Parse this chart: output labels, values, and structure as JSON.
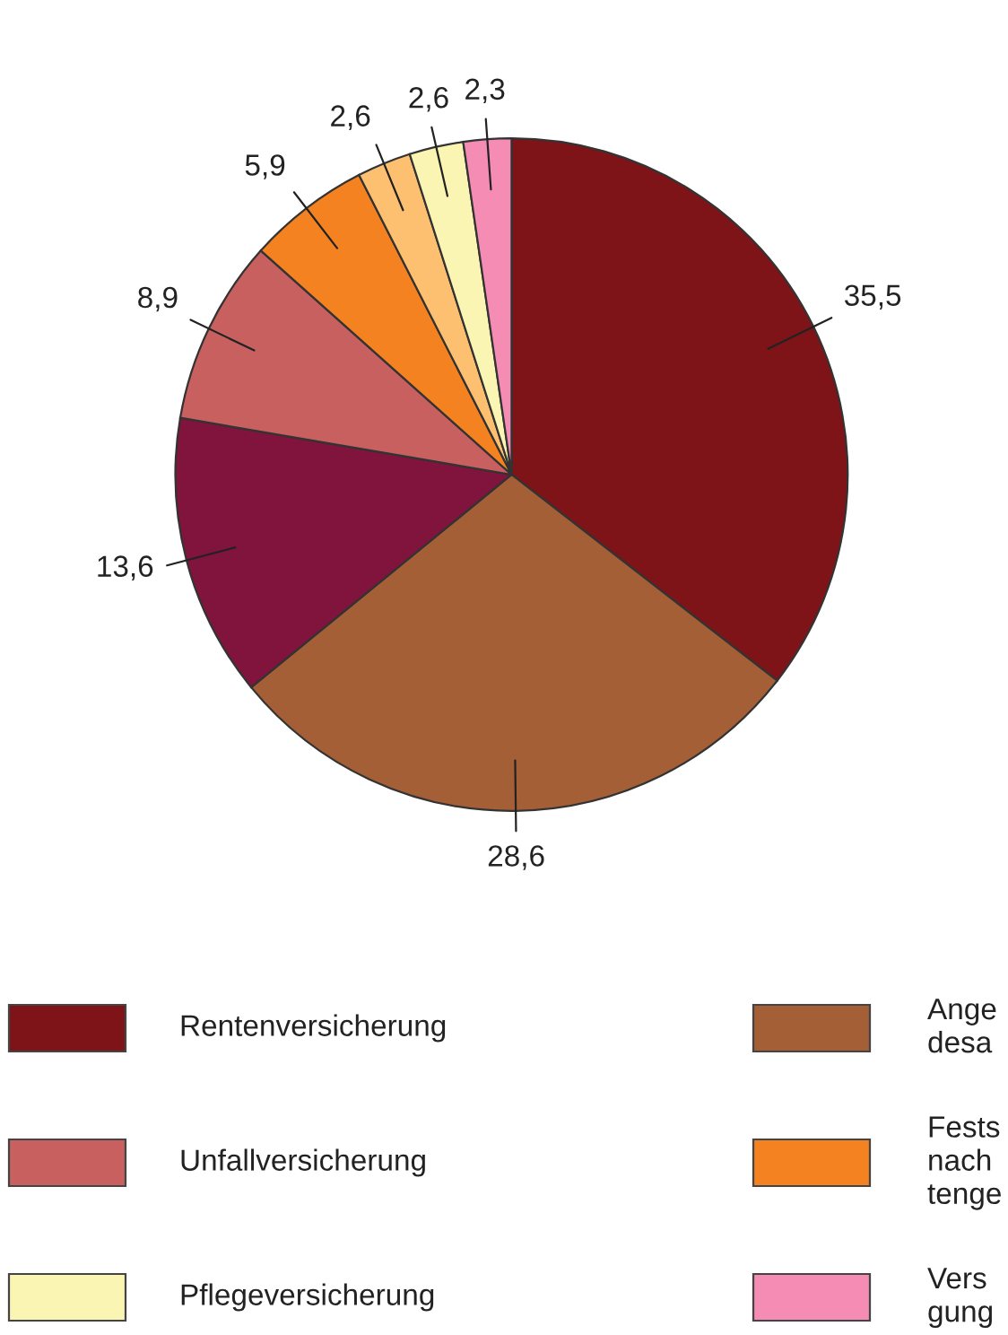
{
  "chart_data": {
    "type": "pie",
    "categories": [
      "Rentenversicherung",
      "Ange\ndesa",
      null,
      "Unfallversicherung",
      "Fests\nnach\ntenge",
      null,
      "Pflegeversicherung",
      "Vers\ngung"
    ],
    "values": [
      35.5,
      28.6,
      13.6,
      8.9,
      5.9,
      2.6,
      2.6,
      2.3
    ],
    "value_labels": [
      "35,5",
      "28,6",
      "13,6",
      "8,9",
      "5,9",
      "2,6",
      "2,6",
      "2,3"
    ],
    "colors": [
      "#7f1418",
      "#a45f37",
      "#80143c",
      "#c86060",
      "#f58220",
      "#fdc070",
      "#fbf5b4",
      "#f48cb4"
    ],
    "legend": "bottom"
  }
}
